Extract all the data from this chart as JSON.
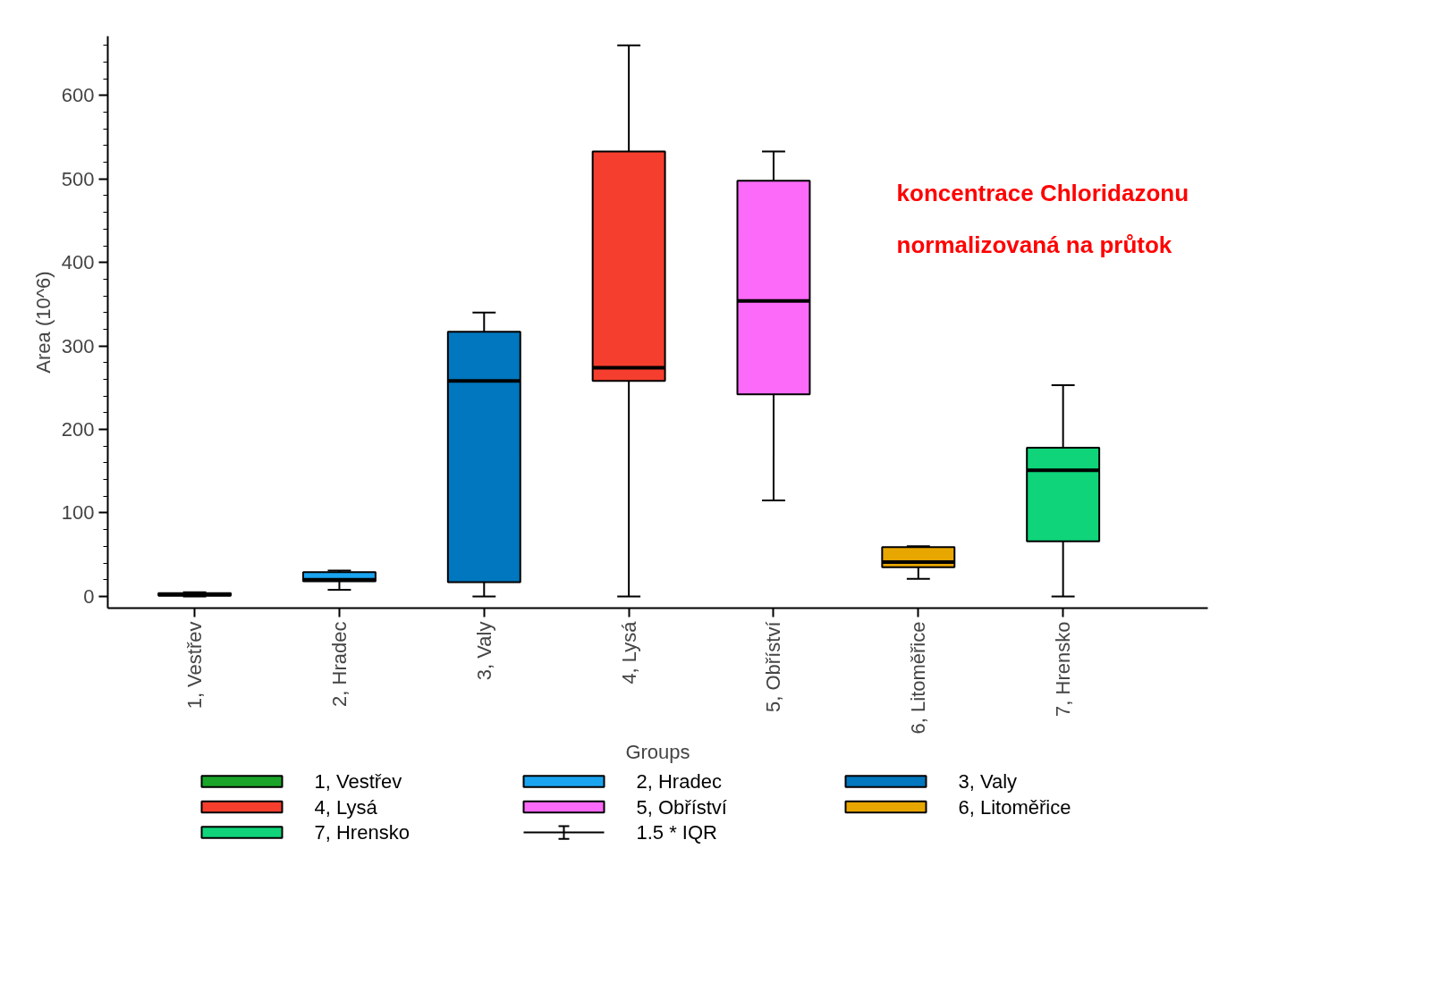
{
  "chart_data": {
    "type": "box",
    "xlabel": "Groups",
    "ylabel": "Area (10^6)",
    "categories": [
      "1, Vestřev",
      "2, Hradec",
      "3, Valy",
      "4, Lysá",
      "5, Obříství",
      "6, Litoměřice",
      "7, Hrensko"
    ],
    "ylim": [
      -14,
      671
    ],
    "yticks": [
      0,
      100,
      200,
      300,
      400,
      500,
      600
    ],
    "grid": false,
    "legend": "bottom",
    "series": [
      {
        "name": "1, Vestřev",
        "color": "#1aa52a",
        "boxes": [
          {
            "low": 0,
            "q1": 1,
            "median": 2,
            "q3": 4,
            "high": 5
          },
          null,
          null,
          null,
          null,
          null,
          null
        ]
      },
      {
        "name": "2, Hradec",
        "color": "#1ba4f0",
        "boxes": [
          null,
          {
            "low": 8,
            "q1": 18,
            "median": 20,
            "q3": 29,
            "high": 31
          },
          null,
          null,
          null,
          null,
          null
        ]
      },
      {
        "name": "3, Valy",
        "color": "#0077be",
        "boxes": [
          null,
          null,
          {
            "low": 0,
            "q1": 17,
            "median": 258,
            "q3": 317,
            "high": 340
          },
          null,
          null,
          null,
          null
        ]
      },
      {
        "name": "4, Lysá",
        "color": "#f53e2e",
        "boxes": [
          null,
          null,
          null,
          {
            "low": 0,
            "q1": 258,
            "median": 274,
            "q3": 533,
            "high": 660
          },
          null,
          null,
          null
        ]
      },
      {
        "name": "5, Obříství",
        "color": "#fb6af8",
        "boxes": [
          null,
          null,
          null,
          null,
          {
            "low": 115,
            "q1": 242,
            "median": 354,
            "q3": 498,
            "high": 533
          },
          null,
          null
        ]
      },
      {
        "name": "6, Litoměřice",
        "color": "#e8a600",
        "boxes": [
          null,
          null,
          null,
          null,
          null,
          {
            "low": 21,
            "q1": 35,
            "median": 41,
            "q3": 59,
            "high": 60
          },
          null
        ]
      },
      {
        "name": "7, Hrensko",
        "color": "#0fd47a",
        "boxes": [
          null,
          null,
          null,
          null,
          null,
          null,
          {
            "low": 0,
            "q1": 66,
            "median": 151,
            "q3": 178,
            "high": 253
          }
        ]
      }
    ],
    "annotations": [
      "1.5 * IQR",
      "koncentrace Chloridazonu",
      "normalizovaná na průtok"
    ]
  }
}
